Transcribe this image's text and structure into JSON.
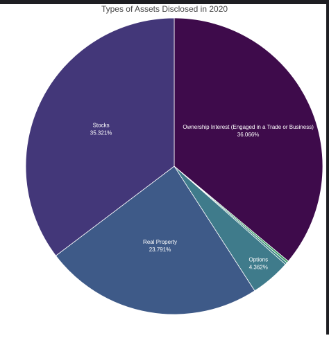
{
  "chart_data": {
    "type": "pie",
    "title": "Types of Assets Disclosed in 2020",
    "categories": [
      "Ownership Interest (Engaged in a Trade or Business)",
      null,
      null,
      "Options",
      "Real Property",
      "Stocks"
    ],
    "values": [
      36.066,
      0.23,
      0.23,
      4.362,
      23.791,
      35.321
    ],
    "value_labels": [
      "36.066%",
      null,
      null,
      "4.362%",
      "23.791%",
      "35.321%"
    ],
    "colors": [
      "#3e0b4b",
      "#3f9a68",
      "#3a8585",
      "#3f7b8b",
      "#3e5a88",
      "#433779"
    ]
  }
}
